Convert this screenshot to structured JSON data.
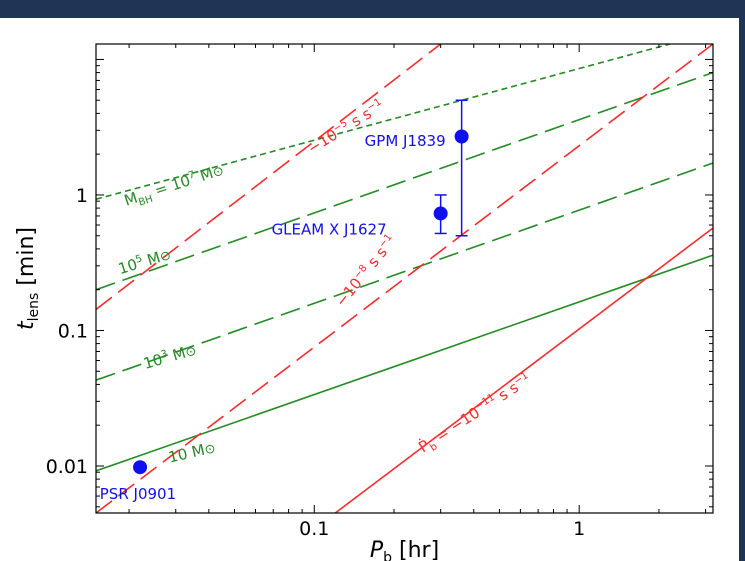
{
  "chart_data": {
    "type": "line",
    "xlabel": {
      "main": "P",
      "sub": "b",
      "unit": " [hr]"
    },
    "ylabel": {
      "main": "t",
      "sub": "lens",
      "unit": " [min]"
    },
    "xscale": "log",
    "yscale": "log",
    "xlim": [
      0.015,
      3.2
    ],
    "ylim": [
      0.0045,
      13
    ],
    "xticks": [
      {
        "value": 0.1,
        "label": "0.1"
      },
      {
        "value": 1,
        "label": "1"
      }
    ],
    "yticks": [
      {
        "value": 0.01,
        "label": "0.01"
      },
      {
        "value": 0.1,
        "label": "0.1"
      },
      {
        "value": 1,
        "label": "1"
      }
    ],
    "series": [
      {
        "group": "mass",
        "color": "#228b22",
        "style": "solid",
        "points": [
          [
            0.015,
            0.0092
          ],
          [
            3.2,
            0.36
          ]
        ]
      },
      {
        "group": "mass",
        "color": "#228b22",
        "style": "dashed-long",
        "points": [
          [
            0.015,
            0.043
          ],
          [
            3.2,
            1.72
          ]
        ]
      },
      {
        "group": "mass",
        "color": "#228b22",
        "style": "dashed-long",
        "points": [
          [
            0.015,
            0.2
          ],
          [
            3.2,
            8.0
          ]
        ]
      },
      {
        "group": "mass",
        "color": "#228b22",
        "style": "dashed-short",
        "points": [
          [
            0.015,
            0.93
          ],
          [
            2.2,
            13
          ]
        ]
      },
      {
        "group": "pdot",
        "color": "#ff2a2a",
        "style": "solid",
        "points": [
          [
            0.12,
            0.0045
          ],
          [
            3.2,
            0.57
          ]
        ]
      },
      {
        "group": "pdot",
        "color": "#ff2a2a",
        "style": "dashed-long",
        "points": [
          [
            0.015,
            0.0045
          ],
          [
            3.2,
            13
          ]
        ]
      },
      {
        "group": "pdot",
        "color": "#ff2a2a",
        "style": "dashed-long",
        "points": [
          [
            0.015,
            0.143
          ],
          [
            0.3,
            13
          ]
        ]
      }
    ],
    "annotations": [
      {
        "id": "m10",
        "color": "#228b22",
        "x": 0.0285,
        "y": 0.0106,
        "angle": -13,
        "parts": [
          {
            "t": "10"
          },
          {
            "t": " M"
          },
          {
            "t": "⊙",
            "size": 0.7
          }
        ]
      },
      {
        "id": "m1e3",
        "color": "#228b22",
        "x": 0.023,
        "y": 0.052,
        "angle": -16,
        "parts": [
          {
            "t": "10"
          },
          {
            "t": "3",
            "sup": true
          },
          {
            "t": " M"
          },
          {
            "t": "⊙",
            "size": 0.7
          }
        ]
      },
      {
        "id": "m1e5",
        "color": "#228b22",
        "x": 0.0185,
        "y": 0.26,
        "angle": -17,
        "parts": [
          {
            "t": "10"
          },
          {
            "t": "5",
            "sup": true
          },
          {
            "t": " M"
          },
          {
            "t": "⊙",
            "size": 0.7
          }
        ]
      },
      {
        "id": "m1e7",
        "color": "#228b22",
        "x": 0.0195,
        "y": 0.83,
        "angle": -18,
        "parts": [
          {
            "t": "M"
          },
          {
            "t": "BH",
            "sub": true
          },
          {
            "t": " = 10"
          },
          {
            "t": "7",
            "sup": true
          },
          {
            "t": " M"
          },
          {
            "t": "⊙",
            "size": 0.7
          }
        ]
      },
      {
        "id": "pd5",
        "color": "#ff2a2a",
        "x": 0.098,
        "y": 2.0,
        "angle": -32,
        "parts": [
          {
            "t": "−10"
          },
          {
            "t": "−5",
            "sup": true
          },
          {
            "t": " s s"
          },
          {
            "t": "−1",
            "sup": true
          }
        ]
      },
      {
        "id": "pd8",
        "color": "#ff2a2a",
        "x": 0.128,
        "y": 0.147,
        "angle": -51,
        "parts": [
          {
            "t": "−10"
          },
          {
            "t": "−8",
            "sup": true
          },
          {
            "t": " s s"
          },
          {
            "t": "−1",
            "sup": true
          }
        ]
      },
      {
        "id": "pd11",
        "color": "#ff2a2a",
        "x": 0.257,
        "y": 0.0125,
        "angle": -33,
        "parts": [
          {
            "t": "Ṗ"
          },
          {
            "t": "b",
            "sub": true
          },
          {
            "t": " = −10"
          },
          {
            "t": "−11",
            "sup": true
          },
          {
            "t": " s s"
          },
          {
            "t": "−1",
            "sup": true
          }
        ]
      }
    ],
    "points": [
      {
        "name": "PSR J0901",
        "x": 0.022,
        "y": 0.0098,
        "yerr": null,
        "label_x": 0.0155,
        "label_y": 0.0057
      },
      {
        "name": "GLEAM X J1627",
        "x": 0.3,
        "y": 0.73,
        "yerr": [
          0.52,
          1.0
        ],
        "label_x": 0.069,
        "label_y": 0.51
      },
      {
        "name": "GPM J1839",
        "x": 0.36,
        "y": 2.7,
        "yerr": [
          0.5,
          5.0
        ],
        "label_x": 0.155,
        "label_y": 2.3
      }
    ],
    "point_color": "#1010ee",
    "grid": false,
    "legend": "none"
  }
}
